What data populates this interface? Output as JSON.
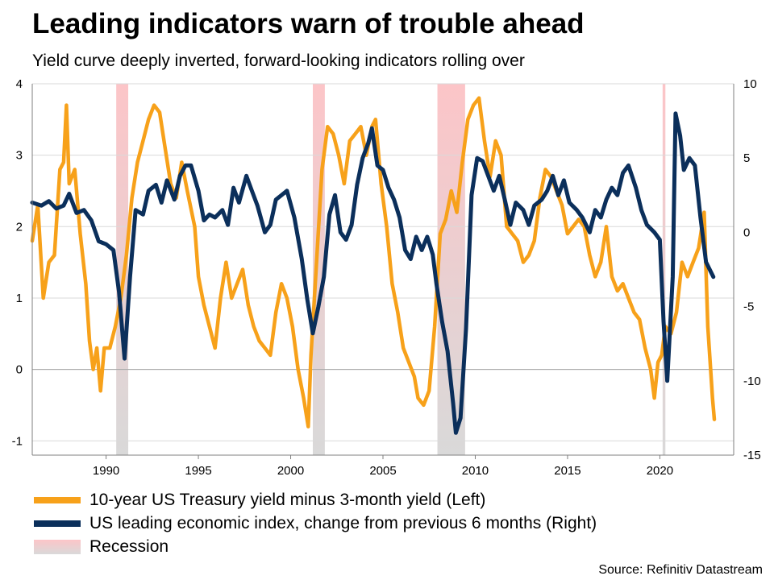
{
  "title": "Leading indicators warn of trouble ahead",
  "subtitle": "Yield curve deeply inverted, forward-looking indicators rolling over",
  "source": "Source: Refinitiv Datastream",
  "colors": {
    "yield_curve": "#F7A11A",
    "lei": "#0B2F5B",
    "recession_top": "#FCC5C8",
    "recession_bottom": "#D9D9D9",
    "gridline": "#D9D9D9",
    "axis": "#7F7F7F"
  },
  "legend": [
    {
      "key": "yield_curve",
      "label": "10-year US Treasury yield minus 3-month yield (Left)"
    },
    {
      "key": "lei",
      "label": "US leading economic index, change from previous 6 months (Right)"
    },
    {
      "key": "recession",
      "label": "Recession"
    }
  ],
  "chart_data": {
    "type": "line",
    "title": "Leading indicators warn of trouble ahead",
    "xlim": [
      1986.0,
      2024.0
    ],
    "x_ticks": [
      1990,
      1995,
      2000,
      2005,
      2010,
      2015,
      2020
    ],
    "y_left": {
      "lim": [
        -1.2,
        4
      ],
      "ticks": [
        -1,
        0,
        1,
        2,
        3,
        4
      ]
    },
    "y_right": {
      "lim": [
        -15,
        10
      ],
      "ticks": [
        -15,
        -10,
        -5,
        0,
        5,
        10
      ]
    },
    "grid": "horizontal",
    "recessions": [
      [
        1990.55,
        1991.2
      ],
      [
        2001.2,
        2001.85
      ],
      [
        2007.95,
        2009.45
      ],
      [
        2020.15,
        2020.3
      ]
    ],
    "series": [
      {
        "name": "10-year US Treasury yield minus 3-month yield (Left)",
        "axis": "left",
        "points": [
          [
            1986.0,
            1.8
          ],
          [
            1986.3,
            2.3
          ],
          [
            1986.6,
            1.0
          ],
          [
            1986.9,
            1.5
          ],
          [
            1987.2,
            1.6
          ],
          [
            1987.5,
            2.8
          ],
          [
            1987.7,
            2.9
          ],
          [
            1987.85,
            3.7
          ],
          [
            1988.0,
            2.6
          ],
          [
            1988.3,
            2.8
          ],
          [
            1988.6,
            1.9
          ],
          [
            1988.9,
            1.2
          ],
          [
            1989.1,
            0.4
          ],
          [
            1989.3,
            0.0
          ],
          [
            1989.5,
            0.3
          ],
          [
            1989.7,
            -0.3
          ],
          [
            1989.9,
            0.3
          ],
          [
            1990.2,
            0.3
          ],
          [
            1990.5,
            0.6
          ],
          [
            1990.8,
            1.0
          ],
          [
            1991.1,
            1.6
          ],
          [
            1991.4,
            2.4
          ],
          [
            1991.7,
            2.9
          ],
          [
            1992.0,
            3.2
          ],
          [
            1992.3,
            3.5
          ],
          [
            1992.6,
            3.7
          ],
          [
            1992.9,
            3.6
          ],
          [
            1993.2,
            3.1
          ],
          [
            1993.5,
            2.6
          ],
          [
            1993.8,
            2.4
          ],
          [
            1994.1,
            2.9
          ],
          [
            1994.4,
            2.5
          ],
          [
            1994.8,
            2.0
          ],
          [
            1995.0,
            1.3
          ],
          [
            1995.3,
            0.9
          ],
          [
            1995.6,
            0.6
          ],
          [
            1995.9,
            0.3
          ],
          [
            1996.2,
            1.0
          ],
          [
            1996.5,
            1.5
          ],
          [
            1996.8,
            1.0
          ],
          [
            1997.1,
            1.2
          ],
          [
            1997.4,
            1.4
          ],
          [
            1997.7,
            0.9
          ],
          [
            1998.0,
            0.6
          ],
          [
            1998.3,
            0.4
          ],
          [
            1998.6,
            0.3
          ],
          [
            1998.9,
            0.2
          ],
          [
            1999.2,
            0.8
          ],
          [
            1999.5,
            1.2
          ],
          [
            1999.8,
            1.0
          ],
          [
            2000.1,
            0.6
          ],
          [
            2000.4,
            0.0
          ],
          [
            2000.7,
            -0.4
          ],
          [
            2000.95,
            -0.8
          ],
          [
            2001.1,
            0.2
          ],
          [
            2001.4,
            1.5
          ],
          [
            2001.7,
            2.8
          ],
          [
            2002.0,
            3.4
          ],
          [
            2002.3,
            3.3
          ],
          [
            2002.6,
            3.0
          ],
          [
            2002.9,
            2.6
          ],
          [
            2003.2,
            3.2
          ],
          [
            2003.5,
            3.3
          ],
          [
            2003.8,
            3.4
          ],
          [
            2004.1,
            3.0
          ],
          [
            2004.4,
            3.4
          ],
          [
            2004.6,
            3.5
          ],
          [
            2004.9,
            2.6
          ],
          [
            2005.2,
            2.0
          ],
          [
            2005.5,
            1.2
          ],
          [
            2005.8,
            0.8
          ],
          [
            2006.1,
            0.3
          ],
          [
            2006.4,
            0.1
          ],
          [
            2006.7,
            -0.1
          ],
          [
            2006.9,
            -0.4
          ],
          [
            2007.2,
            -0.5
          ],
          [
            2007.5,
            -0.3
          ],
          [
            2007.8,
            0.6
          ],
          [
            2008.1,
            1.9
          ],
          [
            2008.4,
            2.1
          ],
          [
            2008.7,
            2.5
          ],
          [
            2009.0,
            2.2
          ],
          [
            2009.3,
            2.9
          ],
          [
            2009.6,
            3.5
          ],
          [
            2009.9,
            3.7
          ],
          [
            2010.2,
            3.8
          ],
          [
            2010.5,
            3.2
          ],
          [
            2010.8,
            2.7
          ],
          [
            2011.1,
            3.2
          ],
          [
            2011.4,
            3.0
          ],
          [
            2011.7,
            2.0
          ],
          [
            2012.0,
            1.9
          ],
          [
            2012.3,
            1.8
          ],
          [
            2012.6,
            1.5
          ],
          [
            2012.9,
            1.6
          ],
          [
            2013.2,
            1.8
          ],
          [
            2013.5,
            2.4
          ],
          [
            2013.8,
            2.8
          ],
          [
            2014.1,
            2.7
          ],
          [
            2014.4,
            2.5
          ],
          [
            2014.7,
            2.3
          ],
          [
            2015.0,
            1.9
          ],
          [
            2015.3,
            2.0
          ],
          [
            2015.6,
            2.1
          ],
          [
            2015.9,
            2.0
          ],
          [
            2016.2,
            1.6
          ],
          [
            2016.5,
            1.3
          ],
          [
            2016.8,
            1.5
          ],
          [
            2017.1,
            2.0
          ],
          [
            2017.4,
            1.3
          ],
          [
            2017.7,
            1.1
          ],
          [
            2018.0,
            1.2
          ],
          [
            2018.3,
            1.0
          ],
          [
            2018.6,
            0.8
          ],
          [
            2018.9,
            0.7
          ],
          [
            2019.2,
            0.3
          ],
          [
            2019.5,
            0.0
          ],
          [
            2019.7,
            -0.4
          ],
          [
            2019.9,
            0.1
          ],
          [
            2020.1,
            0.2
          ],
          [
            2020.3,
            0.6
          ],
          [
            2020.6,
            0.5
          ],
          [
            2020.9,
            0.8
          ],
          [
            2021.2,
            1.5
          ],
          [
            2021.5,
            1.3
          ],
          [
            2021.8,
            1.5
          ],
          [
            2022.1,
            1.7
          ],
          [
            2022.4,
            2.2
          ],
          [
            2022.6,
            0.6
          ],
          [
            2022.75,
            0.0
          ],
          [
            2022.85,
            -0.4
          ],
          [
            2022.95,
            -0.7
          ]
        ]
      },
      {
        "name": "US leading economic index, change from previous 6 months (Right)",
        "axis": "right",
        "points": [
          [
            1986.0,
            2.0
          ],
          [
            1986.5,
            1.8
          ],
          [
            1986.9,
            2.1
          ],
          [
            1987.3,
            1.6
          ],
          [
            1987.7,
            1.8
          ],
          [
            1988.0,
            2.6
          ],
          [
            1988.4,
            1.3
          ],
          [
            1988.8,
            1.5
          ],
          [
            1989.2,
            0.8
          ],
          [
            1989.6,
            -0.6
          ],
          [
            1990.0,
            -0.8
          ],
          [
            1990.4,
            -1.2
          ],
          [
            1990.7,
            -4.0
          ],
          [
            1991.0,
            -8.5
          ],
          [
            1991.3,
            -3.0
          ],
          [
            1991.6,
            1.5
          ],
          [
            1992.0,
            1.2
          ],
          [
            1992.3,
            2.8
          ],
          [
            1992.7,
            3.2
          ],
          [
            1993.0,
            2.0
          ],
          [
            1993.3,
            3.5
          ],
          [
            1993.7,
            2.2
          ],
          [
            1994.0,
            3.8
          ],
          [
            1994.3,
            4.5
          ],
          [
            1994.6,
            4.5
          ],
          [
            1995.0,
            2.8
          ],
          [
            1995.3,
            0.8
          ],
          [
            1995.6,
            1.2
          ],
          [
            1995.9,
            1.0
          ],
          [
            1996.3,
            1.5
          ],
          [
            1996.6,
            0.5
          ],
          [
            1996.9,
            3.0
          ],
          [
            1997.2,
            2.0
          ],
          [
            1997.6,
            3.8
          ],
          [
            1997.9,
            2.8
          ],
          [
            1998.2,
            1.8
          ],
          [
            1998.6,
            0.0
          ],
          [
            1998.9,
            0.5
          ],
          [
            1999.2,
            2.2
          ],
          [
            1999.5,
            2.5
          ],
          [
            1999.8,
            2.8
          ],
          [
            2000.2,
            1.0
          ],
          [
            2000.6,
            -1.8
          ],
          [
            2000.9,
            -4.5
          ],
          [
            2001.2,
            -6.8
          ],
          [
            2001.5,
            -5.0
          ],
          [
            2001.8,
            -3.0
          ],
          [
            2002.1,
            1.2
          ],
          [
            2002.4,
            2.5
          ],
          [
            2002.7,
            0.0
          ],
          [
            2003.0,
            -0.5
          ],
          [
            2003.3,
            0.5
          ],
          [
            2003.6,
            3.2
          ],
          [
            2003.9,
            5.0
          ],
          [
            2004.2,
            6.0
          ],
          [
            2004.4,
            7.0
          ],
          [
            2004.7,
            4.5
          ],
          [
            2005.0,
            4.2
          ],
          [
            2005.3,
            3.0
          ],
          [
            2005.6,
            2.2
          ],
          [
            2005.9,
            1.0
          ],
          [
            2006.2,
            -1.2
          ],
          [
            2006.5,
            -1.8
          ],
          [
            2006.8,
            -0.3
          ],
          [
            2007.1,
            -1.2
          ],
          [
            2007.4,
            -0.3
          ],
          [
            2007.7,
            -1.5
          ],
          [
            2007.9,
            -3.5
          ],
          [
            2008.2,
            -6.0
          ],
          [
            2008.5,
            -8.0
          ],
          [
            2008.8,
            -11.5
          ],
          [
            2008.95,
            -13.5
          ],
          [
            2009.2,
            -12.5
          ],
          [
            2009.5,
            -6.5
          ],
          [
            2009.8,
            2.5
          ],
          [
            2010.1,
            5.0
          ],
          [
            2010.4,
            4.8
          ],
          [
            2010.7,
            3.8
          ],
          [
            2011.0,
            2.8
          ],
          [
            2011.3,
            3.8
          ],
          [
            2011.6,
            2.2
          ],
          [
            2011.9,
            0.5
          ],
          [
            2012.2,
            2.0
          ],
          [
            2012.6,
            1.5
          ],
          [
            2012.9,
            0.5
          ],
          [
            2013.2,
            1.8
          ],
          [
            2013.6,
            2.2
          ],
          [
            2013.9,
            2.8
          ],
          [
            2014.2,
            3.8
          ],
          [
            2014.5,
            2.5
          ],
          [
            2014.8,
            3.5
          ],
          [
            2015.1,
            2.0
          ],
          [
            2015.5,
            1.5
          ],
          [
            2015.8,
            1.0
          ],
          [
            2016.2,
            0.0
          ],
          [
            2016.5,
            1.5
          ],
          [
            2016.8,
            1.0
          ],
          [
            2017.1,
            2.2
          ],
          [
            2017.4,
            3.0
          ],
          [
            2017.7,
            2.5
          ],
          [
            2018.0,
            4.0
          ],
          [
            2018.3,
            4.5
          ],
          [
            2018.7,
            3.0
          ],
          [
            2019.0,
            1.5
          ],
          [
            2019.3,
            0.5
          ],
          [
            2019.7,
            0.0
          ],
          [
            2020.0,
            -0.5
          ],
          [
            2020.2,
            -6.0
          ],
          [
            2020.4,
            -10.0
          ],
          [
            2020.7,
            -3.0
          ],
          [
            2020.85,
            8.0
          ],
          [
            2021.1,
            6.5
          ],
          [
            2021.3,
            4.2
          ],
          [
            2021.6,
            5.0
          ],
          [
            2021.9,
            4.5
          ],
          [
            2022.2,
            1.0
          ],
          [
            2022.5,
            -2.0
          ],
          [
            2022.7,
            -2.5
          ],
          [
            2022.9,
            -3.0
          ]
        ]
      }
    ]
  }
}
